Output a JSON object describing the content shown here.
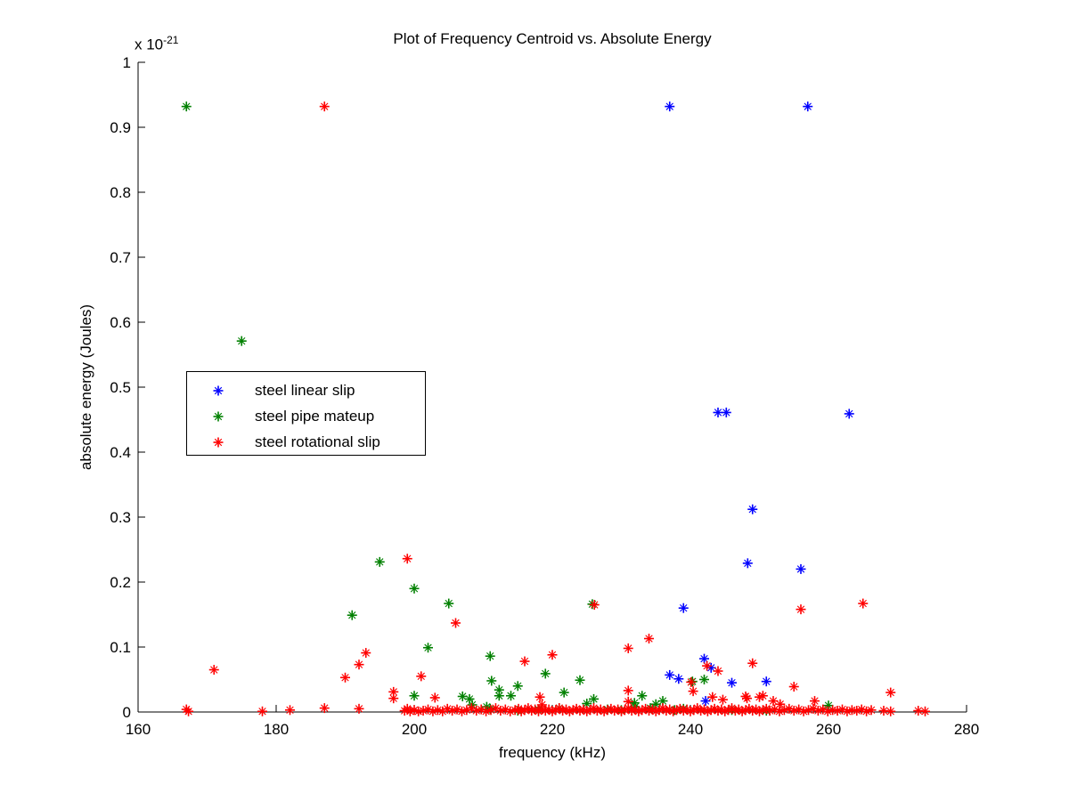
{
  "figure": {
    "title": "Plot of Frequency Centroid vs. Absolute Energy",
    "xlabel": "frequency (kHz)",
    "ylabel": "absolute energy (Joules)",
    "y_scale_label": "x 10",
    "y_scale_exponent": "-21",
    "background_color": "#ffffff",
    "axis_color": "#000000"
  },
  "legend": {
    "entries": [
      {
        "label": "steel linear slip",
        "color": "#0000ff",
        "marker": "asterisk"
      },
      {
        "label": "steel pipe mateup",
        "color": "#008000",
        "marker": "asterisk"
      },
      {
        "label": "steel rotational slip",
        "color": "#ff0000",
        "marker": "asterisk"
      }
    ]
  },
  "chart_data": {
    "type": "scatter",
    "title": "Plot of Frequency Centroid vs. Absolute Energy",
    "xlabel": "frequency (kHz)",
    "ylabel": "absolute energy (Joules)",
    "y_units_multiplier": "1e-21",
    "marker": "asterisk",
    "grid": false,
    "x_range": [
      160,
      280
    ],
    "y_range": [
      0,
      1
    ],
    "x_ticks": [
      160,
      180,
      200,
      220,
      240,
      260,
      280
    ],
    "x_tick_labels": [
      "160",
      "180",
      "200",
      "220",
      "240",
      "260",
      "280"
    ],
    "y_ticks": [
      0,
      0.1,
      0.2,
      0.3,
      0.4,
      0.5,
      0.6,
      0.7,
      0.8,
      0.9,
      1
    ],
    "y_tick_labels": [
      "0",
      "0.1",
      "0.2",
      "0.3",
      "0.4",
      "0.5",
      "0.6",
      "0.7",
      "0.8",
      "0.9",
      "1"
    ],
    "legend_position": "upper-left-inside",
    "series": [
      {
        "name": "steel linear slip",
        "color": "#0000ff",
        "points": [
          [
            237,
            0.932
          ],
          [
            257,
            0.932
          ],
          [
            244,
            0.461
          ],
          [
            245.2,
            0.461
          ],
          [
            263,
            0.459
          ],
          [
            249,
            0.312
          ],
          [
            248.3,
            0.229
          ],
          [
            256,
            0.22
          ],
          [
            239,
            0.16
          ],
          [
            242,
            0.082
          ],
          [
            243,
            0.068
          ],
          [
            237,
            0.057
          ],
          [
            238.3,
            0.051
          ],
          [
            251,
            0.047
          ],
          [
            246,
            0.045
          ],
          [
            242.2,
            0.017
          ]
        ]
      },
      {
        "name": "steel pipe mateup",
        "color": "#008000",
        "points": [
          [
            167,
            0.932
          ],
          [
            175,
            0.571
          ],
          [
            195,
            0.231
          ],
          [
            200,
            0.19
          ],
          [
            205,
            0.167
          ],
          [
            225.8,
            0.166
          ],
          [
            191,
            0.149
          ],
          [
            202,
            0.099
          ],
          [
            211,
            0.086
          ],
          [
            219,
            0.059
          ],
          [
            242,
            0.05
          ],
          [
            224,
            0.049
          ],
          [
            211.2,
            0.048
          ],
          [
            240.3,
            0.047
          ],
          [
            215,
            0.04
          ],
          [
            212.3,
            0.034
          ],
          [
            221.7,
            0.03
          ],
          [
            212.3,
            0.025
          ],
          [
            214,
            0.025
          ],
          [
            233,
            0.025
          ],
          [
            200,
            0.025
          ],
          [
            207,
            0.024
          ],
          [
            226,
            0.02
          ],
          [
            208,
            0.02
          ],
          [
            236,
            0.017
          ],
          [
            231.9,
            0.014
          ],
          [
            225,
            0.013
          ],
          [
            235,
            0.012
          ],
          [
            208.4,
            0.011
          ],
          [
            260,
            0.01
          ],
          [
            232,
            0.008
          ],
          [
            210.5,
            0.008
          ],
          [
            221,
            0.006
          ],
          [
            234.2,
            0.006
          ],
          [
            211,
            0.005
          ],
          [
            228,
            0.004
          ],
          [
            239,
            0.005
          ],
          [
            218,
            0.004
          ],
          [
            237.7,
            0.003
          ],
          [
            246,
            0.003
          ],
          [
            215,
            0.002
          ],
          [
            251,
            0.002
          ],
          [
            230,
            0.003
          ]
        ]
      },
      {
        "name": "steel rotational slip",
        "color": "#ff0000",
        "points": [
          [
            187,
            0.932
          ],
          [
            199,
            0.236
          ],
          [
            265,
            0.167
          ],
          [
            226.1,
            0.165
          ],
          [
            256,
            0.158
          ],
          [
            206,
            0.137
          ],
          [
            234,
            0.113
          ],
          [
            231,
            0.098
          ],
          [
            193,
            0.091
          ],
          [
            220,
            0.088
          ],
          [
            216,
            0.078
          ],
          [
            249,
            0.075
          ],
          [
            192,
            0.073
          ],
          [
            242.4,
            0.071
          ],
          [
            171,
            0.065
          ],
          [
            244,
            0.063
          ],
          [
            201,
            0.055
          ],
          [
            190,
            0.053
          ],
          [
            240.1,
            0.046
          ],
          [
            255,
            0.039
          ],
          [
            231,
            0.033
          ],
          [
            240.4,
            0.032
          ],
          [
            197,
            0.031
          ],
          [
            269,
            0.03
          ],
          [
            250.5,
            0.025
          ],
          [
            248,
            0.024
          ],
          [
            243.2,
            0.023
          ],
          [
            250,
            0.023
          ],
          [
            218.2,
            0.023
          ],
          [
            203,
            0.022
          ],
          [
            197,
            0.021
          ],
          [
            248.2,
            0.021
          ],
          [
            244.7,
            0.019
          ],
          [
            252,
            0.017
          ],
          [
            258,
            0.017
          ],
          [
            231,
            0.016
          ],
          [
            253,
            0.012
          ],
          [
            218.5,
            0.011
          ],
          [
            167,
            0.004
          ],
          [
            167.3,
            0.001
          ],
          [
            178,
            0.001
          ],
          [
            182,
            0.003
          ],
          [
            187,
            0.006
          ],
          [
            192,
            0.005
          ],
          [
            198.6,
            0.002
          ],
          [
            199,
            0.005
          ],
          [
            199.4,
            0.001
          ],
          [
            200,
            0.003
          ],
          [
            200.6,
            0.001
          ],
          [
            201.3,
            0.002
          ],
          [
            202,
            0.004
          ],
          [
            202.7,
            0.001
          ],
          [
            203.4,
            0.003
          ],
          [
            204.1,
            0.001
          ],
          [
            204.8,
            0.005
          ],
          [
            205.5,
            0.002
          ],
          [
            206.2,
            0.004
          ],
          [
            206.9,
            0.001
          ],
          [
            207.6,
            0.003
          ],
          [
            208.3,
            0.006
          ],
          [
            209,
            0.002
          ],
          [
            209.7,
            0.004
          ],
          [
            210.4,
            0.001
          ],
          [
            211.1,
            0.003
          ],
          [
            211.8,
            0.006
          ],
          [
            212.5,
            0.002
          ],
          [
            213.2,
            0.004
          ],
          [
            213.9,
            0.001
          ],
          [
            214.6,
            0.003
          ],
          [
            215.1,
            0.005
          ],
          [
            215.5,
            0.001
          ],
          [
            216,
            0.003
          ],
          [
            216.5,
            0.006
          ],
          [
            217,
            0.002
          ],
          [
            217.5,
            0.004
          ],
          [
            218,
            0.001
          ],
          [
            218.5,
            0.005
          ],
          [
            219,
            0.002
          ],
          [
            219.5,
            0.004
          ],
          [
            220,
            0.001
          ],
          [
            220.5,
            0.003
          ],
          [
            221,
            0.006
          ],
          [
            221.5,
            0.002
          ],
          [
            222,
            0.004
          ],
          [
            222.5,
            0.001
          ],
          [
            223,
            0.003
          ],
          [
            223.5,
            0.005
          ],
          [
            224,
            0.002
          ],
          [
            224.5,
            0.004
          ],
          [
            225,
            0.001
          ],
          [
            225.5,
            0.003
          ],
          [
            226,
            0.006
          ],
          [
            226.5,
            0.002
          ],
          [
            227,
            0.004
          ],
          [
            227.5,
            0.001
          ],
          [
            228,
            0.003
          ],
          [
            228.5,
            0.005
          ],
          [
            229,
            0.002
          ],
          [
            229.5,
            0.004
          ],
          [
            230,
            0.001
          ],
          [
            230.5,
            0.003
          ],
          [
            231,
            0.006
          ],
          [
            231.5,
            0.002
          ],
          [
            232,
            0.004
          ],
          [
            232.5,
            0.001
          ],
          [
            233,
            0.003
          ],
          [
            233.5,
            0.005
          ],
          [
            234,
            0.002
          ],
          [
            234.5,
            0.004
          ],
          [
            235,
            0.001
          ],
          [
            235.5,
            0.003
          ],
          [
            236,
            0.006
          ],
          [
            236.5,
            0.002
          ],
          [
            237,
            0.004
          ],
          [
            237.5,
            0.001
          ],
          [
            238,
            0.003
          ],
          [
            238.5,
            0.005
          ],
          [
            239,
            0.002
          ],
          [
            239.5,
            0.004
          ],
          [
            240,
            0.001
          ],
          [
            240.5,
            0.003
          ],
          [
            241,
            0.006
          ],
          [
            241.5,
            0.002
          ],
          [
            242,
            0.004
          ],
          [
            242.5,
            0.001
          ],
          [
            243,
            0.003
          ],
          [
            243.5,
            0.005
          ],
          [
            244,
            0.002
          ],
          [
            244.5,
            0.004
          ],
          [
            245,
            0.001
          ],
          [
            245.5,
            0.003
          ],
          [
            246,
            0.006
          ],
          [
            246.5,
            0.002
          ],
          [
            247,
            0.004
          ],
          [
            247.5,
            0.001
          ],
          [
            248,
            0.003
          ],
          [
            248.5,
            0.005
          ],
          [
            249,
            0.002
          ],
          [
            249.5,
            0.004
          ],
          [
            250,
            0.001
          ],
          [
            250.5,
            0.003
          ],
          [
            251,
            0.005
          ],
          [
            251.5,
            0.002
          ],
          [
            252.2,
            0.004
          ],
          [
            252.9,
            0.001
          ],
          [
            253.6,
            0.003
          ],
          [
            254.3,
            0.005
          ],
          [
            255,
            0.002
          ],
          [
            255.7,
            0.004
          ],
          [
            256.4,
            0.001
          ],
          [
            257.1,
            0.003
          ],
          [
            257.8,
            0.005
          ],
          [
            258.5,
            0.002
          ],
          [
            259.2,
            0.004
          ],
          [
            259.9,
            0.001
          ],
          [
            260.6,
            0.003
          ],
          [
            261.3,
            0.002
          ],
          [
            262,
            0.004
          ],
          [
            262.7,
            0.001
          ],
          [
            263.4,
            0.003
          ],
          [
            264.1,
            0.002
          ],
          [
            264.8,
            0.004
          ],
          [
            265.5,
            0.001
          ],
          [
            266.2,
            0.003
          ],
          [
            268,
            0.002
          ],
          [
            269,
            0.001
          ],
          [
            273,
            0.002
          ],
          [
            274,
            0.001
          ]
        ]
      }
    ]
  }
}
